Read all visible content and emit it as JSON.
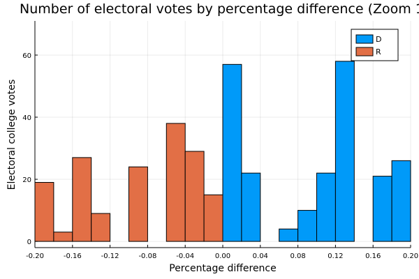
{
  "chart_data": {
    "type": "bar",
    "title": "Number of electoral votes by percentage difference (Zoom 1",
    "xlabel": "Percentage difference",
    "ylabel": "Electoral college votes",
    "xlim": [
      -0.2,
      0.2
    ],
    "ylim": [
      -2,
      71
    ],
    "grid": true,
    "legend_position": "top-right",
    "bin_width": 0.02,
    "x_ticks": [
      "-0.20",
      "-0.16",
      "-0.12",
      "-0.08",
      "-0.04",
      "0.00",
      "0.04",
      "0.08",
      "0.12",
      "0.16",
      "0.20"
    ],
    "x_tick_values": [
      -0.2,
      -0.16,
      -0.12,
      -0.08,
      -0.04,
      0.0,
      0.04,
      0.08,
      0.12,
      0.16,
      0.2
    ],
    "y_ticks": [
      "0",
      "20",
      "40",
      "60"
    ],
    "y_tick_values": [
      0,
      20,
      40,
      60
    ],
    "series": [
      {
        "name": "D",
        "color": "#009af9",
        "bins": [
          {
            "start": 0.0,
            "value": 57
          },
          {
            "start": 0.02,
            "value": 22
          },
          {
            "start": 0.06,
            "value": 4
          },
          {
            "start": 0.08,
            "value": 10
          },
          {
            "start": 0.1,
            "value": 22
          },
          {
            "start": 0.12,
            "value": 58
          },
          {
            "start": 0.16,
            "value": 21
          },
          {
            "start": 0.18,
            "value": 26
          }
        ]
      },
      {
        "name": "R",
        "color": "#e26f46",
        "bins": [
          {
            "start": -0.2,
            "value": 19
          },
          {
            "start": -0.18,
            "value": 3
          },
          {
            "start": -0.16,
            "value": 27
          },
          {
            "start": -0.14,
            "value": 9
          },
          {
            "start": -0.1,
            "value": 24
          },
          {
            "start": -0.06,
            "value": 38
          },
          {
            "start": -0.04,
            "value": 29
          },
          {
            "start": -0.02,
            "value": 15
          }
        ]
      }
    ]
  }
}
